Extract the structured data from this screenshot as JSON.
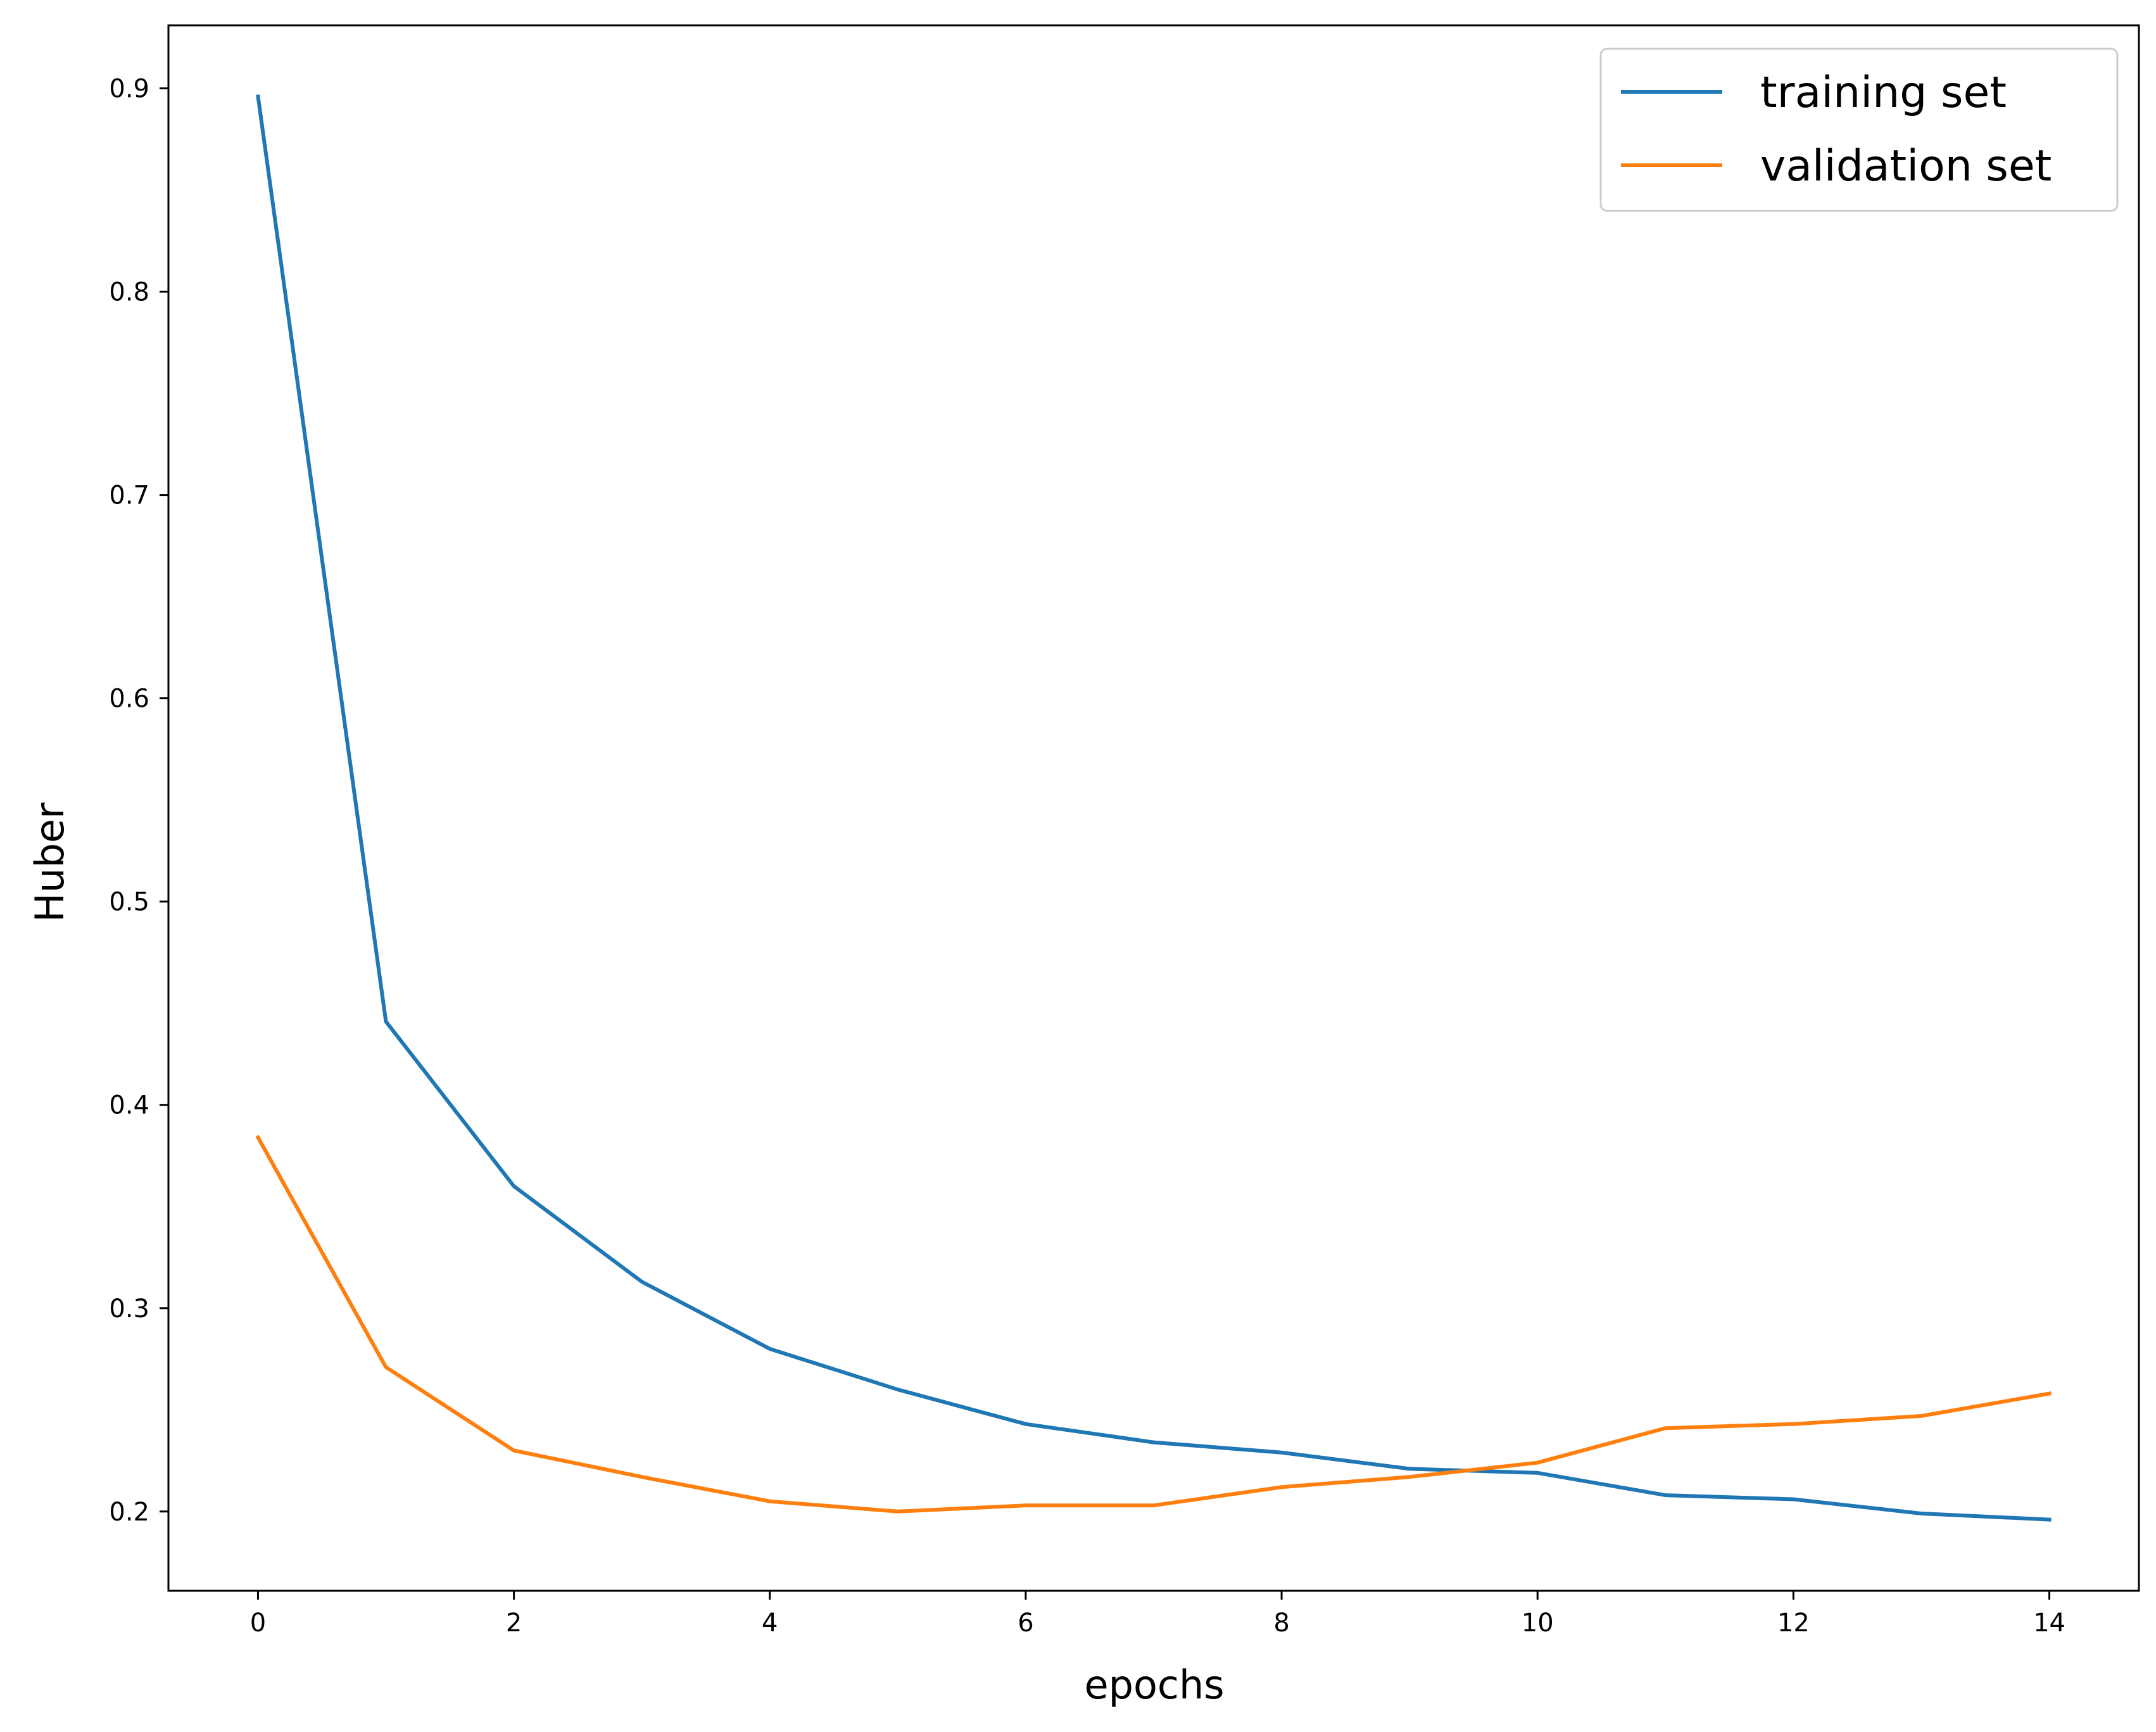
{
  "chart_data": {
    "type": "line",
    "title": "",
    "xlabel": "epochs",
    "ylabel": "Huber",
    "xlim": [
      -0.7,
      14.7
    ],
    "ylim": [
      0.161,
      0.931
    ],
    "x_ticks": [
      0,
      2,
      4,
      6,
      8,
      10,
      12,
      14
    ],
    "x_tick_labels": [
      "0",
      "2",
      "4",
      "6",
      "8",
      "10",
      "12",
      "14"
    ],
    "y_ticks": [
      0.2,
      0.3,
      0.4,
      0.5,
      0.6,
      0.7,
      0.8,
      0.9
    ],
    "y_tick_labels": [
      "0.2",
      "0.3",
      "0.4",
      "0.5",
      "0.6",
      "0.7",
      "0.8",
      "0.9"
    ],
    "grid": false,
    "legend_position": "top-right",
    "x": [
      0,
      1,
      2,
      3,
      4,
      5,
      6,
      7,
      8,
      9,
      10,
      11,
      12,
      13,
      14
    ],
    "series": [
      {
        "name": "training set",
        "color": "#1f77b4",
        "values": [
          0.896,
          0.441,
          0.36,
          0.313,
          0.28,
          0.26,
          0.243,
          0.234,
          0.229,
          0.221,
          0.219,
          0.208,
          0.206,
          0.199,
          0.196
        ]
      },
      {
        "name": "validation set",
        "color": "#ff7f0e",
        "values": [
          0.384,
          0.271,
          0.23,
          0.217,
          0.205,
          0.2,
          0.203,
          0.203,
          0.212,
          0.217,
          0.224,
          0.241,
          0.243,
          0.247,
          0.258
        ]
      }
    ]
  }
}
